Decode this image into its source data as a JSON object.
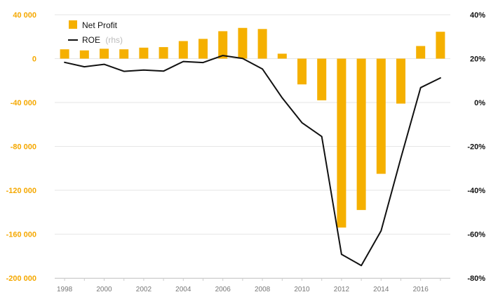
{
  "chart_data": {
    "type": "bar+line",
    "categories": [
      "1998",
      "1999",
      "2000",
      "2001",
      "2002",
      "2003",
      "2004",
      "2005",
      "2006",
      "2007",
      "2008",
      "2009",
      "2010",
      "2011",
      "2012",
      "2013",
      "2014",
      "2015",
      "2016",
      "2017"
    ],
    "series": [
      {
        "name": "Net Profit",
        "type": "bar",
        "axis": "left",
        "color": "#f5b000",
        "values": [
          8500,
          7500,
          9000,
          8500,
          10000,
          10500,
          16000,
          18000,
          25000,
          28000,
          27000,
          4500,
          -23500,
          -38000,
          -154000,
          -138000,
          -105000,
          -41000,
          11500,
          24500
        ]
      },
      {
        "name": "ROE",
        "name_suffix": "(rhs)",
        "type": "line",
        "axis": "right",
        "color": "#111111",
        "values": [
          18.3,
          16.3,
          17.4,
          14.2,
          14.8,
          14.3,
          18.7,
          18.2,
          21.4,
          20.1,
          15.3,
          2.1,
          -9.2,
          -15.5,
          -69.2,
          -74.3,
          -58.5,
          -25.3,
          6.8,
          11.2
        ]
      }
    ],
    "left_axis": {
      "ylim": [
        -200000,
        40000
      ],
      "ticks": [
        40000,
        0,
        -40000,
        -80000,
        -120000,
        -160000,
        -200000
      ],
      "tick_labels": [
        "40 000",
        "0",
        "-40 000",
        "-80 000",
        "-120 000",
        "-160 000",
        "-200 000"
      ],
      "color": "#f5a800"
    },
    "right_axis": {
      "ylim": [
        -80,
        40
      ],
      "ticks": [
        40,
        20,
        0,
        -20,
        -40,
        -60,
        -80
      ],
      "tick_labels": [
        "40%",
        "20%",
        "0%",
        "-20%",
        "-40%",
        "-60%",
        "-80%"
      ],
      "color": "#111111"
    },
    "x_tick_labels": [
      "1998",
      "2000",
      "2002",
      "2004",
      "2006",
      "2008",
      "2010",
      "2012",
      "2014",
      "2016"
    ],
    "grid": true,
    "legend": {
      "position": "top-left",
      "items": [
        {
          "label": "Net Profit",
          "suffix": "",
          "color": "#f5b000",
          "marker": "square"
        },
        {
          "label": "ROE",
          "suffix": "(rhs)",
          "color": "#111111",
          "marker": "line"
        }
      ]
    }
  }
}
